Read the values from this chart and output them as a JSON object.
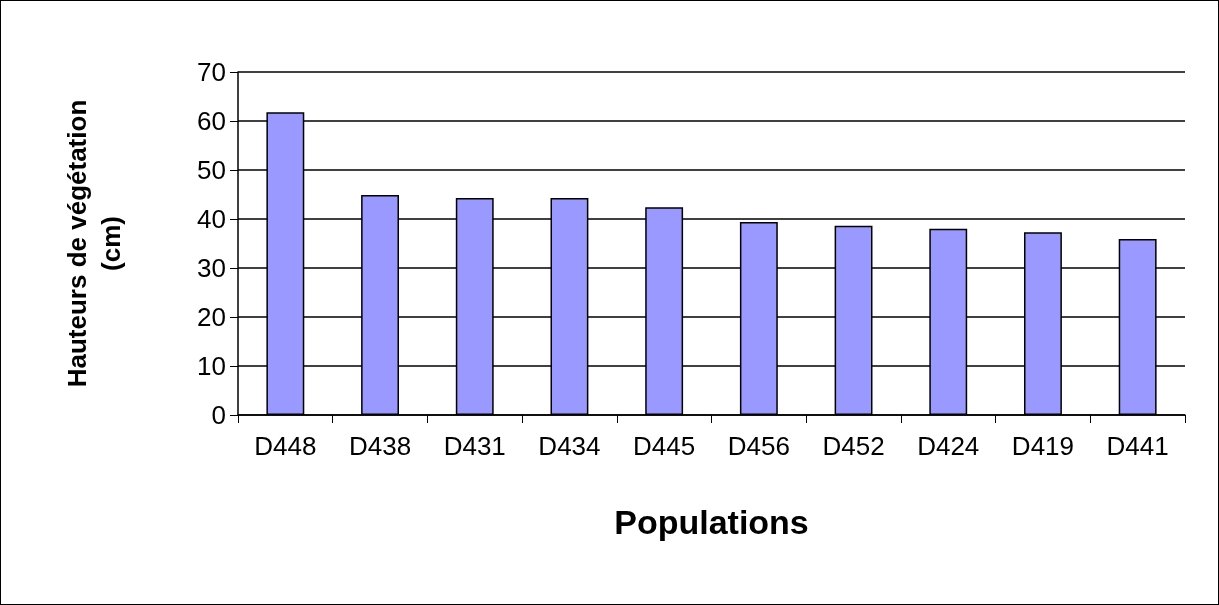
{
  "chart_data": {
    "type": "bar",
    "xlabel": "Populations",
    "ylabel": "Hauteurs de végétation (cm)",
    "categories": [
      "D448",
      "D438",
      "D431",
      "D434",
      "D445",
      "D456",
      "D452",
      "D424",
      "D419",
      "D441"
    ],
    "values": [
      61.8,
      44.9,
      44.3,
      44.3,
      42.4,
      39.4,
      38.6,
      38.0,
      37.3,
      35.9
    ],
    "color": "#9999ff",
    "ylim": [
      0,
      70
    ],
    "yticks": [
      0,
      10,
      20,
      30,
      40,
      50,
      60,
      70
    ],
    "grid": "y"
  }
}
